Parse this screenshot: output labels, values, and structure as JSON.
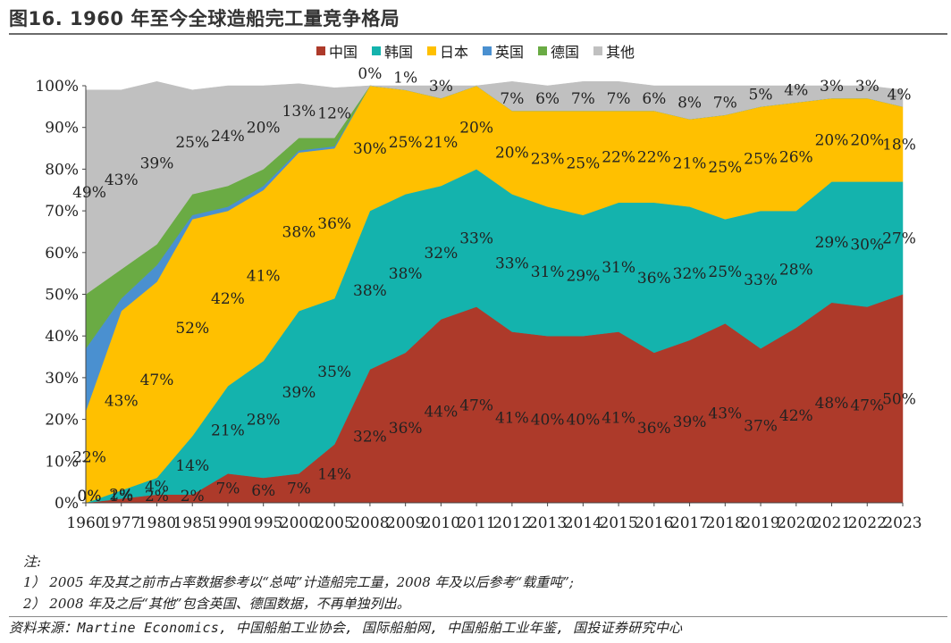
{
  "title": "图16. 1960 年至今全球造船完工量竞争格局",
  "notes": {
    "heading": "注:",
    "line1": "1） 2005 年及其之前市占率数据参考以“总吨”计造船完工量，2008 年及以后参考“载重吨”;",
    "line2": "2） 2008 年及之后“其他”包含英国、德国数据，不再单独列出。"
  },
  "source": "资料来源：Martine Economics, 中国船舶工业协会, 国际船舶网, 中国船舶工业年鉴, 国投证券研究中心",
  "chart_data": {
    "type": "area",
    "stacked": true,
    "percent": true,
    "ylim": [
      0,
      100
    ],
    "yticks": [
      "0%",
      "10%",
      "20%",
      "30%",
      "40%",
      "50%",
      "60%",
      "70%",
      "80%",
      "90%",
      "100%"
    ],
    "x": [
      "1960",
      "1977",
      "1980",
      "1985",
      "1990",
      "1995",
      "2000",
      "2005",
      "2008",
      "2009",
      "2010",
      "2011",
      "2012",
      "2013",
      "2014",
      "2015",
      "2016",
      "2017",
      "2018",
      "2019",
      "2020",
      "2021",
      "2022",
      "2023"
    ],
    "grid": false,
    "legend_position": "top-center",
    "series": [
      {
        "name": "中国",
        "color": "#ad3a2a",
        "values": [
          0,
          1,
          2,
          2,
          7,
          6,
          7,
          14,
          32,
          36,
          44,
          47,
          41,
          40,
          40,
          41,
          36,
          39,
          43,
          37,
          42,
          48,
          47,
          50
        ],
        "labels": [
          "0%",
          "1%",
          "2%",
          "2%",
          "7%",
          "6%",
          "7%",
          "14%",
          "32%",
          "36%",
          "44%",
          "47%",
          "41%",
          "40%",
          "40%",
          "41%",
          "36%",
          "39%",
          "43%",
          "37%",
          "42%",
          "48%",
          "47%",
          "50%"
        ]
      },
      {
        "name": "韩国",
        "color": "#14b3ad",
        "values": [
          0,
          2,
          4,
          14,
          21,
          28,
          39,
          35,
          38,
          38,
          32,
          33,
          33,
          31,
          29,
          31,
          36,
          32,
          25,
          33,
          28,
          29,
          30,
          27
        ],
        "labels": [
          "0%",
          "2%",
          "4%",
          "14%",
          "21%",
          "28%",
          "39%",
          "35%",
          "38%",
          "38%",
          "32%",
          "33%",
          "33%",
          "31%",
          "29%",
          "31%",
          "36%",
          "32%",
          "25%",
          "33%",
          "28%",
          "29%",
          "30%",
          "27%"
        ]
      },
      {
        "name": "日本",
        "color": "#ffc000",
        "values": [
          22,
          43,
          47,
          52,
          42,
          41,
          38,
          36,
          30,
          25,
          21,
          20,
          20,
          23,
          25,
          22,
          22,
          21,
          25,
          25,
          26,
          20,
          20,
          18
        ],
        "labels": [
          "22%",
          "43%",
          "47%",
          "52%",
          "42%",
          "41%",
          "38%",
          "36%",
          "30%",
          "25%",
          "21%",
          "20%",
          "20%",
          "23%",
          "25%",
          "22%",
          "22%",
          "21%",
          "25%",
          "25%",
          "26%",
          "20%",
          "20%",
          "18%"
        ]
      },
      {
        "name": "英国",
        "color": "#4a90d0",
        "values": [
          15,
          3,
          4,
          1,
          1,
          1,
          0.5,
          0.5,
          0,
          0,
          0,
          0,
          0,
          0,
          0,
          0,
          0,
          0,
          0,
          0,
          0,
          0,
          0,
          0
        ]
      },
      {
        "name": "德国",
        "color": "#6aab44",
        "values": [
          13,
          7,
          5,
          5,
          5,
          4,
          3,
          2,
          0,
          0,
          0,
          0,
          0,
          0,
          0,
          0,
          0,
          0,
          0,
          0,
          0,
          0,
          0,
          0
        ]
      },
      {
        "name": "其他",
        "color": "#c0c0c0",
        "values": [
          49,
          43,
          39,
          25,
          24,
          20,
          13,
          12,
          0,
          1,
          3,
          0,
          7,
          6,
          7,
          7,
          6,
          8,
          7,
          5,
          4,
          3,
          3,
          4
        ],
        "labels": [
          "49%",
          "43%",
          "39%",
          "25%",
          "24%",
          "20%",
          "13%",
          "12%",
          "0%",
          "1%",
          "3%",
          "",
          "7%",
          "6%",
          "7%",
          "7%",
          "6%",
          "8%",
          "7%",
          "5%",
          "4%",
          "3%",
          "3%",
          "4%"
        ]
      }
    ]
  }
}
